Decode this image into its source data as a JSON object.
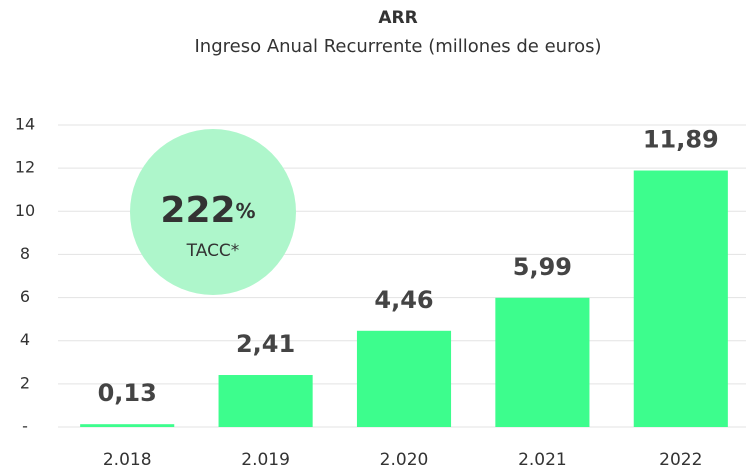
{
  "chart_data": {
    "type": "bar",
    "title": "ARR",
    "subtitle": "Ingreso Anual Recurrente (millones de euros)",
    "categories": [
      "2.018",
      "2.019",
      "2.020",
      "2.021",
      "2022"
    ],
    "values": [
      0.13,
      2.41,
      4.46,
      5.99,
      11.89
    ],
    "value_labels": [
      "0,13",
      "2,41",
      "4,46",
      "5,99",
      "11,89"
    ],
    "color": "#3dfd8d",
    "ylim": [
      0,
      14
    ],
    "yticks": [
      {
        "value": 0,
        "label": "-"
      },
      2,
      4,
      6,
      8,
      10,
      12,
      14
    ],
    "grid": true,
    "annotation": {
      "number": "222",
      "unit": "%",
      "caption": "TACC*",
      "color": "#aef6cb"
    }
  }
}
